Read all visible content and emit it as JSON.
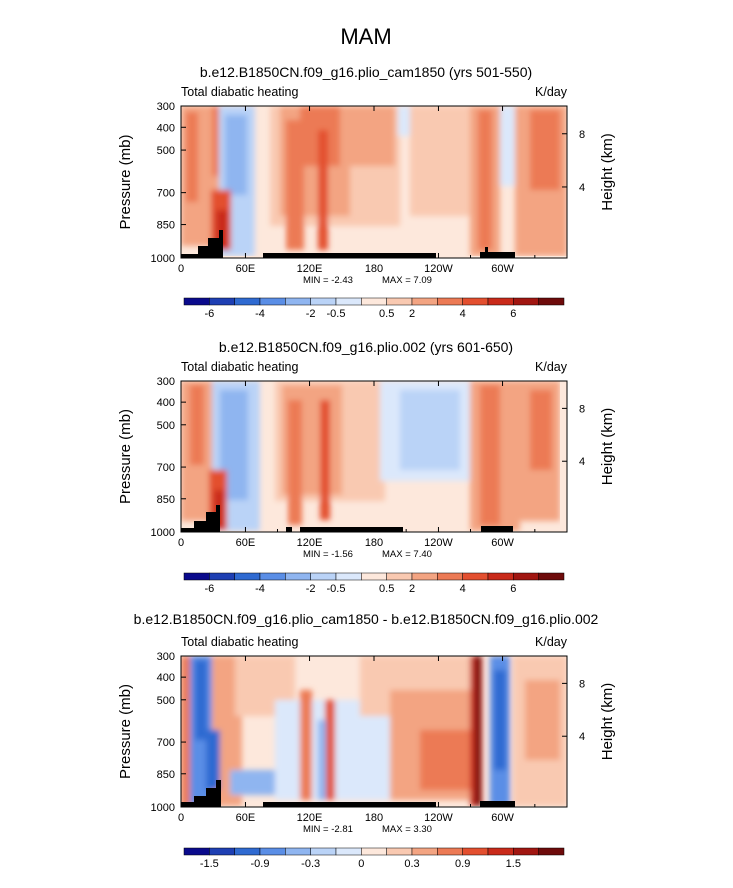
{
  "figure": {
    "title": "MAM"
  },
  "colors": {
    "fill": "#f7f7f7",
    "palette": [
      "#0a0a8c",
      "#1e3fb3",
      "#2f6ad1",
      "#5a8ee6",
      "#8fb5f0",
      "#bad3f7",
      "#dbe8fb",
      "#fde8dc",
      "#f9c9b1",
      "#f3a482",
      "#ec7a55",
      "#e34f2f",
      "#c92a1a",
      "#a11611",
      "#6e0b0b"
    ],
    "terrain": "#000000"
  },
  "chart_data": [
    {
      "type": "heatmap",
      "title": "b.e12.B1850CN.f09_g16.plio_cam1850 (yrs 501-550)",
      "left_label": "Total diabatic heating",
      "right_label": "K/day",
      "ylabel": "Pressure (mb)",
      "ylabel_right": "Height (km)",
      "x_ticks": [
        "0",
        "60E",
        "120E",
        "180",
        "120W",
        "60W"
      ],
      "y_ticks": [
        "300",
        "400",
        "500",
        "700",
        "850",
        "1000"
      ],
      "y_ticks_right": [
        "8",
        "4"
      ],
      "min_label": "MIN = ",
      "min": -2.43,
      "max_label": "MAX = ",
      "max": 7.09,
      "colorbar_labels": [
        "-6",
        "-4",
        "-2",
        "-0.5",
        "0.5",
        "2",
        "4",
        "6"
      ],
      "terrain_id": "A"
    },
    {
      "type": "heatmap",
      "title": "b.e12.B1850CN.f09_g16.plio.002 (yrs 601-650)",
      "left_label": "Total diabatic heating",
      "right_label": "K/day",
      "ylabel": "Pressure (mb)",
      "ylabel_right": "Height (km)",
      "x_ticks": [
        "0",
        "60E",
        "120E",
        "180",
        "120W",
        "60W"
      ],
      "y_ticks": [
        "300",
        "400",
        "500",
        "700",
        "850",
        "1000"
      ],
      "y_ticks_right": [
        "8",
        "4"
      ],
      "min_label": "MIN = ",
      "min": -1.56,
      "max_label": "MAX = ",
      "max": 7.4,
      "colorbar_labels": [
        "-6",
        "-4",
        "-2",
        "-0.5",
        "0.5",
        "2",
        "4",
        "6"
      ],
      "terrain_id": "B"
    },
    {
      "type": "heatmap",
      "title": "b.e12.B1850CN.f09_g16.plio_cam1850 - b.e12.B1850CN.f09_g16.plio.002",
      "left_label": "Total diabatic heating",
      "right_label": "K/day",
      "ylabel": "Pressure (mb)",
      "ylabel_right": "Height (km)",
      "x_ticks": [
        "0",
        "60E",
        "120E",
        "180",
        "120W",
        "60W"
      ],
      "y_ticks": [
        "300",
        "400",
        "500",
        "700",
        "850",
        "1000"
      ],
      "y_ticks_right": [
        "8",
        "4"
      ],
      "min_label": "MIN = ",
      "min": -2.81,
      "max_label": "MAX = ",
      "max": 3.3,
      "colorbar_labels": [
        "-1.5",
        "-0.9",
        "-0.3",
        "0",
        "0.3",
        "0.9",
        "1.5"
      ],
      "terrain_id": "A"
    }
  ]
}
